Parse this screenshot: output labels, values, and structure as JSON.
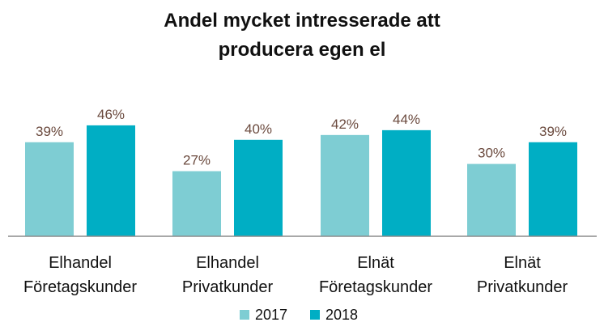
{
  "chart_data": {
    "type": "bar",
    "title_line1": "Andel mycket intresserade att",
    "title_line2": "producera egen el",
    "categories": [
      [
        "Elhandel",
        "Företagskunder"
      ],
      [
        "Elhandel",
        "Privatkunder"
      ],
      [
        "Elnät",
        "Företagskunder"
      ],
      [
        "Elnät",
        "Privatkunder"
      ]
    ],
    "series": [
      {
        "name": "2017",
        "values": [
          39,
          27,
          42,
          30
        ],
        "labels": [
          "39%",
          "27%",
          "42%",
          "30%"
        ],
        "color": "#7ecdd3"
      },
      {
        "name": "2018",
        "values": [
          46,
          40,
          44,
          39
        ],
        "labels": [
          "46%",
          "40%",
          "44%",
          "39%"
        ],
        "color": "#00aec4"
      }
    ],
    "grid": false,
    "legend_position": "bottom",
    "label_color": "#6b4a3e"
  }
}
